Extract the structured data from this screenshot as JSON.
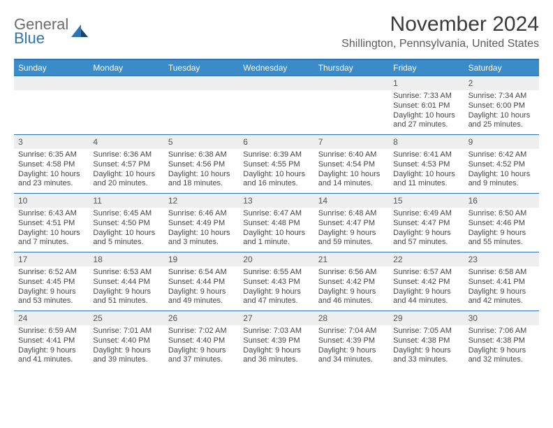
{
  "brand": {
    "general": "General",
    "blue": "Blue"
  },
  "title": "November 2024",
  "location": "Shillington, Pennsylvania, United States",
  "colors": {
    "header_bar": "#3b8bc9",
    "divider": "#2d73b5",
    "daynum_bg": "#eeeeee",
    "text": "#333333",
    "muted": "#555555",
    "title_text": "#3a3a3a"
  },
  "dow": [
    "Sunday",
    "Monday",
    "Tuesday",
    "Wednesday",
    "Thursday",
    "Friday",
    "Saturday"
  ],
  "weeks": [
    [
      {
        "num": "",
        "lines": []
      },
      {
        "num": "",
        "lines": []
      },
      {
        "num": "",
        "lines": []
      },
      {
        "num": "",
        "lines": []
      },
      {
        "num": "",
        "lines": []
      },
      {
        "num": "1",
        "lines": [
          "Sunrise: 7:33 AM",
          "Sunset: 6:01 PM",
          "Daylight: 10 hours",
          "and 27 minutes."
        ]
      },
      {
        "num": "2",
        "lines": [
          "Sunrise: 7:34 AM",
          "Sunset: 6:00 PM",
          "Daylight: 10 hours",
          "and 25 minutes."
        ]
      }
    ],
    [
      {
        "num": "3",
        "lines": [
          "Sunrise: 6:35 AM",
          "Sunset: 4:58 PM",
          "Daylight: 10 hours",
          "and 23 minutes."
        ]
      },
      {
        "num": "4",
        "lines": [
          "Sunrise: 6:36 AM",
          "Sunset: 4:57 PM",
          "Daylight: 10 hours",
          "and 20 minutes."
        ]
      },
      {
        "num": "5",
        "lines": [
          "Sunrise: 6:38 AM",
          "Sunset: 4:56 PM",
          "Daylight: 10 hours",
          "and 18 minutes."
        ]
      },
      {
        "num": "6",
        "lines": [
          "Sunrise: 6:39 AM",
          "Sunset: 4:55 PM",
          "Daylight: 10 hours",
          "and 16 minutes."
        ]
      },
      {
        "num": "7",
        "lines": [
          "Sunrise: 6:40 AM",
          "Sunset: 4:54 PM",
          "Daylight: 10 hours",
          "and 14 minutes."
        ]
      },
      {
        "num": "8",
        "lines": [
          "Sunrise: 6:41 AM",
          "Sunset: 4:53 PM",
          "Daylight: 10 hours",
          "and 11 minutes."
        ]
      },
      {
        "num": "9",
        "lines": [
          "Sunrise: 6:42 AM",
          "Sunset: 4:52 PM",
          "Daylight: 10 hours",
          "and 9 minutes."
        ]
      }
    ],
    [
      {
        "num": "10",
        "lines": [
          "Sunrise: 6:43 AM",
          "Sunset: 4:51 PM",
          "Daylight: 10 hours",
          "and 7 minutes."
        ]
      },
      {
        "num": "11",
        "lines": [
          "Sunrise: 6:45 AM",
          "Sunset: 4:50 PM",
          "Daylight: 10 hours",
          "and 5 minutes."
        ]
      },
      {
        "num": "12",
        "lines": [
          "Sunrise: 6:46 AM",
          "Sunset: 4:49 PM",
          "Daylight: 10 hours",
          "and 3 minutes."
        ]
      },
      {
        "num": "13",
        "lines": [
          "Sunrise: 6:47 AM",
          "Sunset: 4:48 PM",
          "Daylight: 10 hours",
          "and 1 minute."
        ]
      },
      {
        "num": "14",
        "lines": [
          "Sunrise: 6:48 AM",
          "Sunset: 4:47 PM",
          "Daylight: 9 hours",
          "and 59 minutes."
        ]
      },
      {
        "num": "15",
        "lines": [
          "Sunrise: 6:49 AM",
          "Sunset: 4:47 PM",
          "Daylight: 9 hours",
          "and 57 minutes."
        ]
      },
      {
        "num": "16",
        "lines": [
          "Sunrise: 6:50 AM",
          "Sunset: 4:46 PM",
          "Daylight: 9 hours",
          "and 55 minutes."
        ]
      }
    ],
    [
      {
        "num": "17",
        "lines": [
          "Sunrise: 6:52 AM",
          "Sunset: 4:45 PM",
          "Daylight: 9 hours",
          "and 53 minutes."
        ]
      },
      {
        "num": "18",
        "lines": [
          "Sunrise: 6:53 AM",
          "Sunset: 4:44 PM",
          "Daylight: 9 hours",
          "and 51 minutes."
        ]
      },
      {
        "num": "19",
        "lines": [
          "Sunrise: 6:54 AM",
          "Sunset: 4:44 PM",
          "Daylight: 9 hours",
          "and 49 minutes."
        ]
      },
      {
        "num": "20",
        "lines": [
          "Sunrise: 6:55 AM",
          "Sunset: 4:43 PM",
          "Daylight: 9 hours",
          "and 47 minutes."
        ]
      },
      {
        "num": "21",
        "lines": [
          "Sunrise: 6:56 AM",
          "Sunset: 4:42 PM",
          "Daylight: 9 hours",
          "and 46 minutes."
        ]
      },
      {
        "num": "22",
        "lines": [
          "Sunrise: 6:57 AM",
          "Sunset: 4:42 PM",
          "Daylight: 9 hours",
          "and 44 minutes."
        ]
      },
      {
        "num": "23",
        "lines": [
          "Sunrise: 6:58 AM",
          "Sunset: 4:41 PM",
          "Daylight: 9 hours",
          "and 42 minutes."
        ]
      }
    ],
    [
      {
        "num": "24",
        "lines": [
          "Sunrise: 6:59 AM",
          "Sunset: 4:41 PM",
          "Daylight: 9 hours",
          "and 41 minutes."
        ]
      },
      {
        "num": "25",
        "lines": [
          "Sunrise: 7:01 AM",
          "Sunset: 4:40 PM",
          "Daylight: 9 hours",
          "and 39 minutes."
        ]
      },
      {
        "num": "26",
        "lines": [
          "Sunrise: 7:02 AM",
          "Sunset: 4:40 PM",
          "Daylight: 9 hours",
          "and 37 minutes."
        ]
      },
      {
        "num": "27",
        "lines": [
          "Sunrise: 7:03 AM",
          "Sunset: 4:39 PM",
          "Daylight: 9 hours",
          "and 36 minutes."
        ]
      },
      {
        "num": "28",
        "lines": [
          "Sunrise: 7:04 AM",
          "Sunset: 4:39 PM",
          "Daylight: 9 hours",
          "and 34 minutes."
        ]
      },
      {
        "num": "29",
        "lines": [
          "Sunrise: 7:05 AM",
          "Sunset: 4:38 PM",
          "Daylight: 9 hours",
          "and 33 minutes."
        ]
      },
      {
        "num": "30",
        "lines": [
          "Sunrise: 7:06 AM",
          "Sunset: 4:38 PM",
          "Daylight: 9 hours",
          "and 32 minutes."
        ]
      }
    ]
  ]
}
